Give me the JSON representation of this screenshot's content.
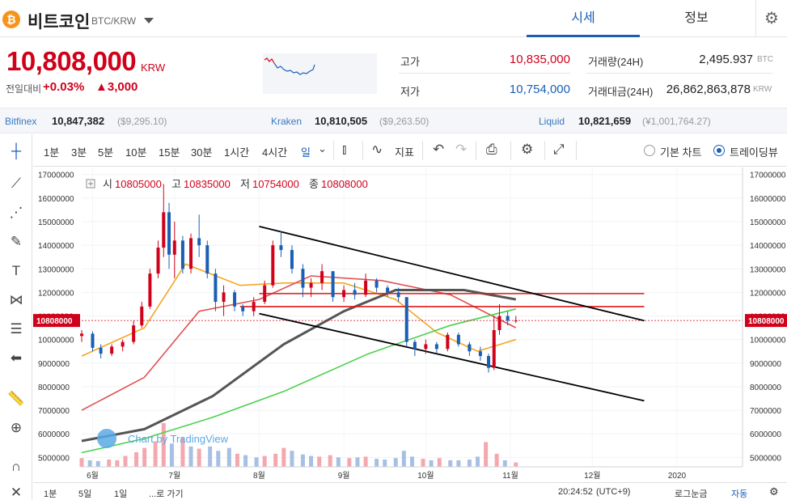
{
  "coin": {
    "icon_name": "bitcoin-icon",
    "icon_glyph": "₿",
    "name": "비트코인",
    "pair": "BTC/KRW"
  },
  "tabs": [
    {
      "label": "시세",
      "active": true
    },
    {
      "label": "정보",
      "active": false
    }
  ],
  "price": {
    "current": "10,808,000",
    "unit": "KRW",
    "change_label": "전일대비",
    "change_pct": "+0.03%",
    "change_amt": "▲3,000"
  },
  "stats": {
    "high_label": "고가",
    "high": "10,835,000",
    "low_label": "저가",
    "low": "10,754,000",
    "volume_label": "거래량(24H)",
    "volume": "2,495.937",
    "volume_unit": "BTC",
    "turnover_label": "거래대금(24H)",
    "turnover": "26,862,863,878",
    "turnover_unit": "KRW"
  },
  "exchanges": [
    {
      "name": "Bitfinex",
      "price": "10,847,382",
      "usd": "($9,295.10)"
    },
    {
      "name": "Kraken",
      "price": "10,810,505",
      "usd": "($9,263.50)"
    },
    {
      "name": "Liquid",
      "price": "10,821,659",
      "usd": "(¥1,001,764.27)"
    }
  ],
  "toolbar": {
    "timeframes": [
      "1분",
      "3분",
      "5분",
      "10분",
      "15분",
      "30분",
      "1시간",
      "4시간",
      "일"
    ],
    "indicator_label": "지표",
    "basic_chart": "기본 차트",
    "trading_view": "트레이딩뷰"
  },
  "ohlc": {
    "o_label": "시",
    "o": "10805000",
    "h_label": "고",
    "h": "10835000",
    "l_label": "저",
    "l": "10754000",
    "c_label": "종",
    "c": "10808000"
  },
  "watermark": "Chart by TradingView",
  "bottom": {
    "ranges": [
      "1분",
      "5일",
      "1일"
    ],
    "goto": "...로 가기",
    "time": "20:24:52",
    "tz": "(UTC+9)",
    "log": "로그눈금",
    "auto": "자동"
  },
  "chart_data": {
    "type": "candlestick",
    "x_tick_labels": [
      "6월",
      "7월",
      "8월",
      "9월",
      "10월",
      "11월",
      "12월",
      "2020"
    ],
    "y_tick_labels": [
      "17000000",
      "16000000",
      "15000000",
      "14000000",
      "13000000",
      "12000000",
      "11000000",
      "10000000",
      "9000000",
      "8000000",
      "7000000",
      "6000000",
      "5000000"
    ],
    "ylim": [
      4600000,
      17300000
    ],
    "last_price_label": "10808000",
    "last_price": 10808000,
    "x_range": [
      "2019-05-28",
      "2020-01-25"
    ],
    "candles": [
      [
        "2019-05-28",
        10150000,
        10400000,
        9900000,
        10250000
      ],
      [
        "2019-06-01",
        10250000,
        10350000,
        9500000,
        9650000
      ],
      [
        "2019-06-04",
        9650000,
        9800000,
        9200000,
        9400000
      ],
      [
        "2019-06-08",
        9400000,
        9800000,
        9300000,
        9700000
      ],
      [
        "2019-06-12",
        9700000,
        10000000,
        9500000,
        9900000
      ],
      [
        "2019-06-16",
        9900000,
        10800000,
        9800000,
        10600000
      ],
      [
        "2019-06-19",
        10600000,
        11600000,
        10500000,
        11400000
      ],
      [
        "2019-06-22",
        11400000,
        13000000,
        11300000,
        12800000
      ],
      [
        "2019-06-25",
        12800000,
        14200000,
        12600000,
        13900000
      ],
      [
        "2019-06-27",
        13900000,
        16600000,
        13500000,
        15400000
      ],
      [
        "2019-06-29",
        15400000,
        15800000,
        13000000,
        13600000
      ],
      [
        "2019-07-01",
        13600000,
        15000000,
        12600000,
        14200000
      ],
      [
        "2019-07-04",
        14200000,
        14400000,
        12800000,
        13000000
      ],
      [
        "2019-07-07",
        13000000,
        14500000,
        12800000,
        14300000
      ],
      [
        "2019-07-10",
        14300000,
        15300000,
        13500000,
        14000000
      ],
      [
        "2019-07-13",
        14000000,
        14200000,
        12600000,
        12800000
      ],
      [
        "2019-07-16",
        12800000,
        13000000,
        11200000,
        11600000
      ],
      [
        "2019-07-19",
        11600000,
        12300000,
        11000000,
        12000000
      ],
      [
        "2019-07-23",
        12000000,
        12100000,
        11200000,
        11400000
      ],
      [
        "2019-07-26",
        11400000,
        11500000,
        11000000,
        11200000
      ],
      [
        "2019-07-30",
        11200000,
        11800000,
        11000000,
        11600000
      ],
      [
        "2019-08-03",
        11600000,
        12500000,
        11500000,
        12300000
      ],
      [
        "2019-08-06",
        12300000,
        14200000,
        12200000,
        14000000
      ],
      [
        "2019-08-09",
        14000000,
        14600000,
        13500000,
        13800000
      ],
      [
        "2019-08-13",
        13800000,
        14000000,
        12800000,
        13000000
      ],
      [
        "2019-08-17",
        13000000,
        13200000,
        11800000,
        12200000
      ],
      [
        "2019-08-20",
        12200000,
        12600000,
        11800000,
        12400000
      ],
      [
        "2019-08-24",
        12400000,
        13200000,
        12100000,
        12900000
      ],
      [
        "2019-08-28",
        12900000,
        12900000,
        11600000,
        11800000
      ],
      [
        "2019-09-01",
        11800000,
        12300000,
        11600000,
        12100000
      ],
      [
        "2019-09-05",
        12100000,
        12400000,
        11700000,
        11900000
      ],
      [
        "2019-09-09",
        11900000,
        12800000,
        11800000,
        12500000
      ],
      [
        "2019-09-13",
        12500000,
        12600000,
        12000000,
        12200000
      ],
      [
        "2019-09-17",
        12200000,
        12300000,
        11800000,
        12000000
      ],
      [
        "2019-09-21",
        12000000,
        12200000,
        11600000,
        11800000
      ],
      [
        "2019-09-24",
        11800000,
        11800000,
        9700000,
        9900000
      ],
      [
        "2019-09-27",
        9900000,
        10000000,
        9300000,
        9600000
      ],
      [
        "2019-10-01",
        9600000,
        10000000,
        9400000,
        9800000
      ],
      [
        "2019-10-05",
        9800000,
        9900000,
        9400000,
        9600000
      ],
      [
        "2019-10-09",
        9600000,
        10300000,
        9500000,
        10200000
      ],
      [
        "2019-10-13",
        10200000,
        10300000,
        9700000,
        9800000
      ],
      [
        "2019-10-17",
        9800000,
        9900000,
        9300000,
        9500000
      ],
      [
        "2019-10-21",
        9500000,
        9700000,
        9100000,
        9300000
      ],
      [
        "2019-10-24",
        9300000,
        9400000,
        8600000,
        8800000
      ],
      [
        "2019-10-26",
        8800000,
        11000000,
        8700000,
        10400000
      ],
      [
        "2019-10-28",
        10400000,
        11500000,
        10200000,
        11000000
      ],
      [
        "2019-10-31",
        11000000,
        11200000,
        10600000,
        10800000
      ],
      [
        "2019-11-03",
        10800000,
        11000000,
        10700000,
        10808000
      ]
    ],
    "moving_averages": [
      {
        "color": "#f5a623",
        "values": [
          [
            "2019-05-28",
            9300000
          ],
          [
            "2019-06-20",
            10500000
          ],
          [
            "2019-07-05",
            13200000
          ],
          [
            "2019-07-25",
            12300000
          ],
          [
            "2019-08-10",
            12400000
          ],
          [
            "2019-09-01",
            12400000
          ],
          [
            "2019-09-20",
            11700000
          ],
          [
            "2019-10-05",
            10300000
          ],
          [
            "2019-10-20",
            9500000
          ],
          [
            "2019-11-03",
            10000000
          ]
        ]
      },
      {
        "color": "#e05050",
        "values": [
          [
            "2019-05-28",
            7000000
          ],
          [
            "2019-06-20",
            8400000
          ],
          [
            "2019-07-10",
            11200000
          ],
          [
            "2019-08-01",
            11700000
          ],
          [
            "2019-08-20",
            12700000
          ],
          [
            "2019-09-15",
            12500000
          ],
          [
            "2019-10-10",
            11900000
          ],
          [
            "2019-11-03",
            10500000
          ]
        ]
      },
      {
        "color": "#555555",
        "values": [
          [
            "2019-05-28",
            5700000
          ],
          [
            "2019-06-20",
            6200000
          ],
          [
            "2019-07-15",
            7600000
          ],
          [
            "2019-08-10",
            9800000
          ],
          [
            "2019-09-01",
            11200000
          ],
          [
            "2019-09-20",
            12100000
          ],
          [
            "2019-10-15",
            12100000
          ],
          [
            "2019-11-03",
            11700000
          ]
        ]
      },
      {
        "color": "#4cd04c",
        "values": [
          [
            "2019-05-28",
            5200000
          ],
          [
            "2019-06-20",
            5800000
          ],
          [
            "2019-07-15",
            6700000
          ],
          [
            "2019-08-10",
            7800000
          ],
          [
            "2019-09-10",
            9400000
          ],
          [
            "2019-10-10",
            10600000
          ],
          [
            "2019-11-03",
            11300000
          ]
        ]
      }
    ],
    "trend_lines": [
      {
        "color": "#000000",
        "from": [
          "2019-08-01",
          14800000
        ],
        "to": [
          "2019-12-20",
          10800000
        ]
      },
      {
        "color": "#000000",
        "from": [
          "2019-08-01",
          11100000
        ],
        "to": [
          "2019-12-20",
          7400000
        ]
      }
    ],
    "horizontal_lines": [
      {
        "color": "#e01818",
        "from": "2019-08-01",
        "to": "2019-12-20",
        "value": 11950000
      },
      {
        "color": "#e01818",
        "from": "2019-07-25",
        "to": "2019-12-20",
        "value": 11400000
      }
    ],
    "volume_ylim": [
      0,
      10000
    ],
    "volume": [
      [
        1,
        1200
      ],
      [
        2,
        900
      ],
      [
        3,
        800
      ],
      [
        4,
        1000
      ],
      [
        5,
        900
      ],
      [
        6,
        1500
      ],
      [
        7,
        2000
      ],
      [
        8,
        2600
      ],
      [
        9,
        3500
      ],
      [
        10,
        6000
      ],
      [
        11,
        3200
      ],
      [
        12,
        4000
      ],
      [
        13,
        2800
      ],
      [
        14,
        2500
      ],
      [
        15,
        2800
      ],
      [
        16,
        2200
      ],
      [
        17,
        2600
      ],
      [
        18,
        1800
      ],
      [
        19,
        1600
      ],
      [
        20,
        1300
      ],
      [
        21,
        1500
      ],
      [
        22,
        1800
      ],
      [
        23,
        2600
      ],
      [
        24,
        2200
      ],
      [
        25,
        1700
      ],
      [
        26,
        1500
      ],
      [
        27,
        1400
      ],
      [
        28,
        1600
      ],
      [
        29,
        1300
      ],
      [
        30,
        1200
      ],
      [
        31,
        1300
      ],
      [
        32,
        1400
      ],
      [
        33,
        1100
      ],
      [
        34,
        1000
      ],
      [
        35,
        1200
      ],
      [
        36,
        2200
      ],
      [
        37,
        1400
      ],
      [
        38,
        1100
      ],
      [
        39,
        900
      ],
      [
        40,
        1200
      ],
      [
        41,
        900
      ],
      [
        42,
        900
      ],
      [
        43,
        1000
      ],
      [
        44,
        1400
      ],
      [
        45,
        3400
      ],
      [
        46,
        1800
      ],
      [
        47,
        900
      ],
      [
        48,
        600
      ]
    ]
  }
}
